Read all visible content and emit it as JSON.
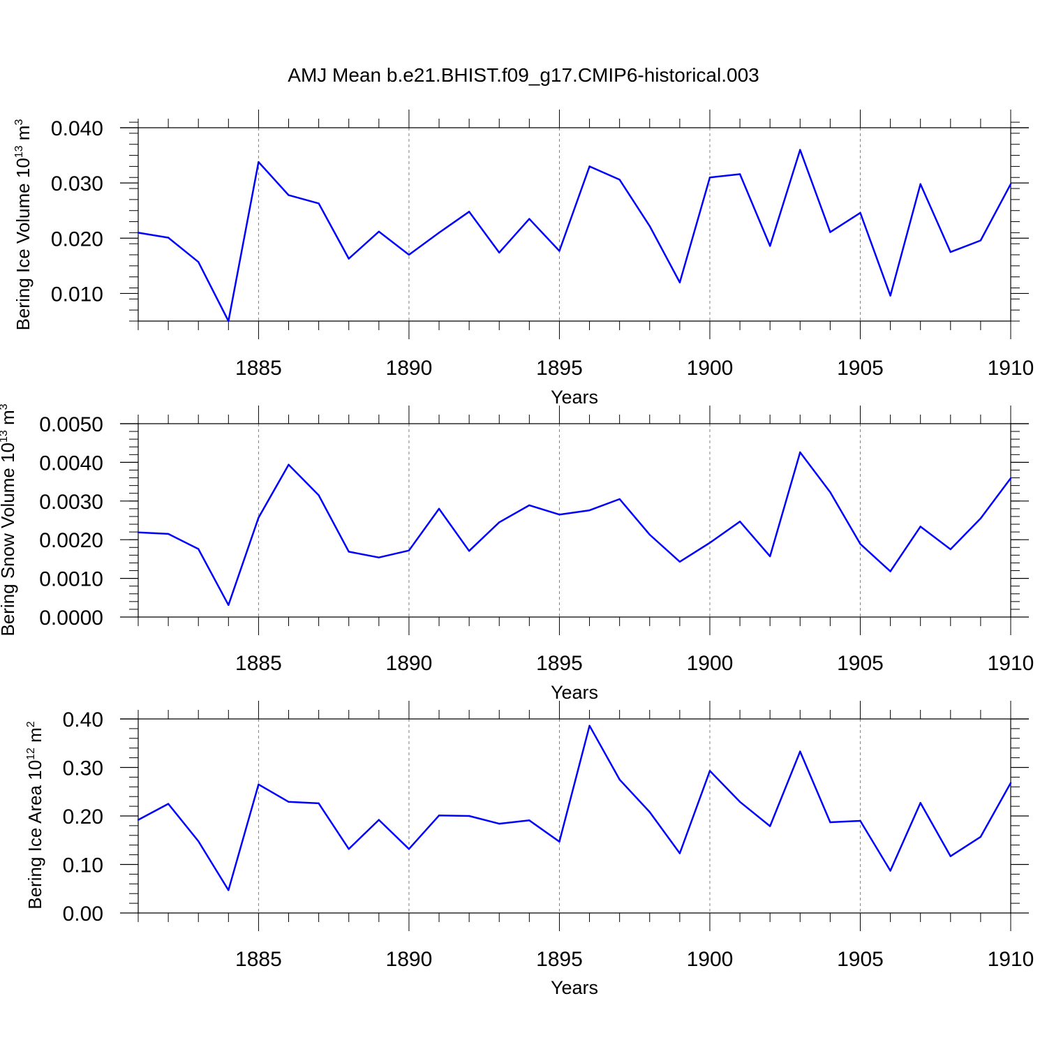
{
  "title": "AMJ Mean b.e21.BHIST.f09_g17.CMIP6-historical.003",
  "colors": {
    "line": "#0000ff",
    "axis": "#000000",
    "grid": "#808080"
  },
  "chart_data": [
    {
      "type": "line",
      "xlabel": "Years",
      "ylabel": {
        "prefix": "Bering Ice Volume 10",
        "exp": "13",
        "unit": " m",
        "unit_exp": "3"
      },
      "x": [
        1881,
        1882,
        1883,
        1884,
        1885,
        1886,
        1887,
        1888,
        1889,
        1890,
        1891,
        1892,
        1893,
        1894,
        1895,
        1896,
        1897,
        1898,
        1899,
        1900,
        1901,
        1902,
        1903,
        1904,
        1905,
        1906,
        1907,
        1908,
        1909,
        1910
      ],
      "values": [
        0.021,
        0.0201,
        0.0157,
        0.005,
        0.0338,
        0.0278,
        0.0263,
        0.0163,
        0.0212,
        0.017,
        0.021,
        0.0248,
        0.0174,
        0.0235,
        0.0177,
        0.033,
        0.0306,
        0.0222,
        0.012,
        0.031,
        0.0316,
        0.0186,
        0.036,
        0.0211,
        0.0246,
        0.0096,
        0.0298,
        0.0175,
        0.0196,
        0.0298
      ],
      "xlim": [
        1881,
        1910
      ],
      "ylim": [
        0.005,
        0.04
      ],
      "yticks": [
        "0.010",
        "0.020",
        "0.030",
        "0.040"
      ],
      "ytick_values": [
        0.01,
        0.02,
        0.03,
        0.04
      ],
      "ymajor_step": 0.01,
      "yminor_step": 0.002,
      "xticks": [
        "1885",
        "1890",
        "1895",
        "1900",
        "1905",
        "1910"
      ],
      "xtick_values": [
        1885,
        1890,
        1895,
        1900,
        1905,
        1910
      ],
      "grid_x": [
        1885,
        1890,
        1895,
        1900,
        1905
      ]
    },
    {
      "type": "line",
      "xlabel": "Years",
      "ylabel": {
        "prefix": "Bering Snow Volume 10",
        "exp": "13",
        "unit": " m",
        "unit_exp": "3"
      },
      "x": [
        1881,
        1882,
        1883,
        1884,
        1885,
        1886,
        1887,
        1888,
        1889,
        1890,
        1891,
        1892,
        1893,
        1894,
        1895,
        1896,
        1897,
        1898,
        1899,
        1900,
        1901,
        1902,
        1903,
        1904,
        1905,
        1906,
        1907,
        1908,
        1909,
        1910
      ],
      "values": [
        0.00219,
        0.00215,
        0.00176,
        0.00031,
        0.00257,
        0.00394,
        0.00315,
        0.00169,
        0.00154,
        0.00172,
        0.0028,
        0.00171,
        0.00245,
        0.00289,
        0.00265,
        0.00276,
        0.00305,
        0.00213,
        0.00143,
        0.00192,
        0.00247,
        0.00157,
        0.00426,
        0.00323,
        0.00189,
        0.00118,
        0.00234,
        0.00175,
        0.00255,
        0.00359
      ],
      "xlim": [
        1881,
        1910
      ],
      "ylim": [
        0.0,
        0.005
      ],
      "yticks": [
        "0.0000",
        "0.0010",
        "0.0020",
        "0.0030",
        "0.0040",
        "0.0050"
      ],
      "ytick_values": [
        0.0,
        0.001,
        0.002,
        0.003,
        0.004,
        0.005
      ],
      "ymajor_step": 0.001,
      "yminor_step": 0.0002,
      "xticks": [
        "1885",
        "1890",
        "1895",
        "1900",
        "1905",
        "1910"
      ],
      "xtick_values": [
        1885,
        1890,
        1895,
        1900,
        1905,
        1910
      ],
      "grid_x": [
        1885,
        1890,
        1895,
        1900,
        1905
      ]
    },
    {
      "type": "line",
      "xlabel": "Years",
      "ylabel": {
        "prefix": "Bering Ice Area 10",
        "exp": "12",
        "unit": " m",
        "unit_exp": "2"
      },
      "x": [
        1881,
        1882,
        1883,
        1884,
        1885,
        1886,
        1887,
        1888,
        1889,
        1890,
        1891,
        1892,
        1893,
        1894,
        1895,
        1896,
        1897,
        1898,
        1899,
        1900,
        1901,
        1902,
        1903,
        1904,
        1905,
        1906,
        1907,
        1908,
        1909,
        1910
      ],
      "values": [
        0.192,
        0.225,
        0.148,
        0.047,
        0.265,
        0.229,
        0.226,
        0.132,
        0.192,
        0.132,
        0.201,
        0.2,
        0.184,
        0.191,
        0.147,
        0.386,
        0.275,
        0.208,
        0.123,
        0.293,
        0.229,
        0.179,
        0.333,
        0.187,
        0.19,
        0.087,
        0.227,
        0.117,
        0.157,
        0.268
      ],
      "xlim": [
        1881,
        1910
      ],
      "ylim": [
        0.0,
        0.4
      ],
      "yticks": [
        "0.00",
        "0.10",
        "0.20",
        "0.30",
        "0.40"
      ],
      "ytick_values": [
        0.0,
        0.1,
        0.2,
        0.3,
        0.4
      ],
      "ymajor_step": 0.1,
      "yminor_step": 0.02,
      "xticks": [
        "1885",
        "1890",
        "1895",
        "1900",
        "1905",
        "1910"
      ],
      "xtick_values": [
        1885,
        1890,
        1895,
        1900,
        1905,
        1910
      ],
      "grid_x": [
        1885,
        1890,
        1895,
        1900,
        1905
      ]
    }
  ]
}
